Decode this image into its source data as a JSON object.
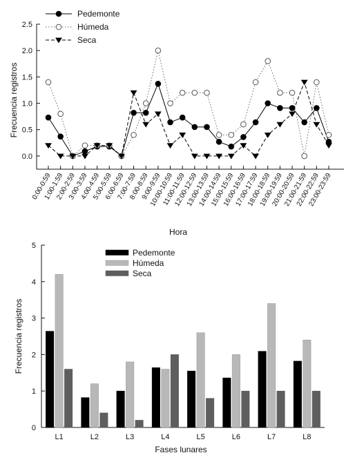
{
  "chart_data": [
    {
      "type": "line",
      "xlabel": "Hora",
      "ylabel": "Frecuencia registros",
      "ylim": [
        -0.25,
        2.5
      ],
      "y_ticks": [
        0.0,
        0.5,
        1.0,
        1.5,
        2.0,
        2.5
      ],
      "y_tick_labels": [
        "0.0",
        "0.5",
        "1.0",
        "1.5",
        "2.0",
        "2.5"
      ],
      "legend_position": "top-left",
      "categories": [
        "0:00-0:59",
        "1:00-1:59",
        "2:00-2:59",
        "3:00-3:59",
        "4:00-4:59",
        "5:00-5:59",
        "6:00-6:59",
        "7:00-7:59",
        "8:00-8:59",
        "9:00-9:59",
        "10:00-10:59",
        "11:00-11:59",
        "12:00-12:59",
        "13:00-13:59",
        "14:00-14:59",
        "15:00-15:59",
        "16:00-16:59",
        "17:00-17:59",
        "18:00-18:59",
        "19:00-19:59",
        "20:00-20:59",
        "21:00-21:59",
        "22:00-22:59",
        "23:00-23:59"
      ],
      "series": [
        {
          "name": "Pedemonte",
          "marker": "filled-circle",
          "line": "solid",
          "color": "#000000",
          "values": [
            0.73,
            0.37,
            0.0,
            0.09,
            0.18,
            0.18,
            0.0,
            0.82,
            0.82,
            1.37,
            0.64,
            0.73,
            0.55,
            0.55,
            0.27,
            0.18,
            0.36,
            0.64,
            1.0,
            0.91,
            0.91,
            0.64,
            0.91,
            0.27
          ]
        },
        {
          "name": "Húmeda",
          "marker": "open-circle",
          "line": "dotted",
          "color": "#666666",
          "values": [
            1.4,
            0.8,
            0.0,
            0.2,
            0.2,
            0.2,
            0.0,
            0.4,
            1.0,
            2.0,
            1.0,
            1.2,
            1.2,
            1.2,
            0.4,
            0.4,
            0.6,
            1.4,
            1.8,
            1.2,
            1.2,
            0.0,
            1.4,
            0.4
          ]
        },
        {
          "name": "Seca",
          "marker": "filled-triangle-down",
          "line": "dashed",
          "color": "#000000",
          "values": [
            0.2,
            0.0,
            0.0,
            0.0,
            0.2,
            0.2,
            0.0,
            1.2,
            0.6,
            0.8,
            0.2,
            0.4,
            0.0,
            0.0,
            0.0,
            0.0,
            0.2,
            0.0,
            0.4,
            0.6,
            0.8,
            1.4,
            0.6,
            0.2
          ]
        }
      ]
    },
    {
      "type": "bar",
      "xlabel": "Fases lunares",
      "ylabel": "Frecuencia registros",
      "ylim": [
        0,
        5
      ],
      "y_ticks": [
        0,
        1,
        2,
        3,
        4,
        5
      ],
      "y_tick_labels": [
        "0",
        "1",
        "2",
        "3",
        "4",
        "5"
      ],
      "legend_position": "top-left",
      "categories": [
        "L1",
        "L2",
        "L3",
        "L4",
        "L5",
        "L6",
        "L7",
        "L8"
      ],
      "series": [
        {
          "name": "Pedemonte",
          "color": "#000000",
          "values": [
            2.64,
            0.82,
            1.0,
            1.64,
            1.55,
            1.36,
            2.09,
            1.82
          ]
        },
        {
          "name": "Húmeda",
          "color": "#b8b8b8",
          "values": [
            4.2,
            1.2,
            1.8,
            1.6,
            2.6,
            2.0,
            3.4,
            2.4
          ]
        },
        {
          "name": "Seca",
          "color": "#5e5e5e",
          "values": [
            1.6,
            0.4,
            0.2,
            2.0,
            0.8,
            1.0,
            1.0,
            1.0
          ]
        }
      ]
    }
  ]
}
